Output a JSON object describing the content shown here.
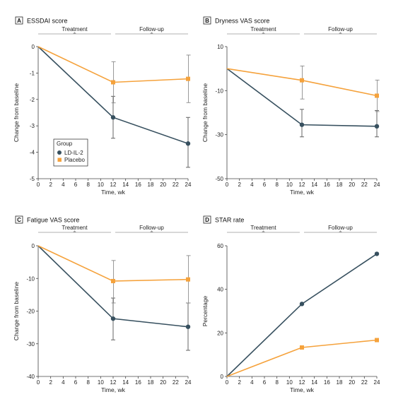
{
  "colors": {
    "ld_il2": "#37505f",
    "placebo": "#f5a23c",
    "axis": "#444444",
    "errorbar": "#8a8a8a",
    "phase_bar": "#999999"
  },
  "chart_data": [
    {
      "type": "line",
      "panel_letter": "A",
      "title": "ESSDAI score",
      "xlabel": "Time, wk",
      "ylabel": "Change from baseline",
      "xlim": [
        0,
        24
      ],
      "xticks": [
        0,
        2,
        4,
        6,
        8,
        10,
        12,
        14,
        16,
        18,
        20,
        22,
        24
      ],
      "ylim": [
        -5,
        0
      ],
      "yticks": [
        0,
        -1,
        -2,
        -3,
        -4,
        -5
      ],
      "phases": [
        "Treatment",
        "Follow-up"
      ],
      "legend": {
        "title": "Group",
        "entries": [
          "LD-IL-2",
          "Placebo"
        ],
        "placement": "bottom-left"
      },
      "x": [
        0,
        12,
        24
      ],
      "series": [
        {
          "name": "LD-IL-2",
          "key": "ld_il2",
          "marker": "circle",
          "values": [
            0,
            -2.68,
            -3.67
          ],
          "err_low": [
            null,
            -3.47,
            -4.57
          ],
          "err_high": [
            null,
            -1.88,
            -2.68
          ]
        },
        {
          "name": "Placebo",
          "key": "placebo",
          "marker": "square",
          "values": [
            0,
            -1.35,
            -1.22
          ],
          "err_low": [
            null,
            -2.13,
            -2.12
          ],
          "err_high": [
            null,
            -0.57,
            -0.32
          ]
        }
      ]
    },
    {
      "type": "line",
      "panel_letter": "B",
      "title": "Dryness VAS score",
      "xlabel": "Time, wk",
      "ylabel": "Change from baseline",
      "xlim": [
        0,
        24
      ],
      "xticks": [
        0,
        2,
        4,
        6,
        8,
        10,
        12,
        14,
        16,
        18,
        20,
        22,
        24
      ],
      "ylim": [
        -50,
        10
      ],
      "yticks": [
        10,
        -10,
        -30,
        -50
      ],
      "phases": [
        "Treatment",
        "Follow-up"
      ],
      "x": [
        0,
        12,
        24
      ],
      "series": [
        {
          "name": "LD-IL-2",
          "key": "ld_il2",
          "marker": "circle",
          "values": [
            0,
            -25.5,
            -26.2
          ],
          "err_low": [
            null,
            -31,
            -31
          ],
          "err_high": [
            null,
            -18.5,
            -19
          ]
        },
        {
          "name": "Placebo",
          "key": "placebo",
          "marker": "square",
          "values": [
            0,
            -5.3,
            -12.3
          ],
          "err_low": [
            null,
            -13.8,
            -19.5
          ],
          "err_high": [
            null,
            1.2,
            -5.2
          ]
        }
      ]
    },
    {
      "type": "line",
      "panel_letter": "C",
      "title": "Fatigue VAS score",
      "xlabel": "Time, wk",
      "ylabel": "Change from baseline",
      "xlim": [
        0,
        24
      ],
      "xticks": [
        0,
        2,
        4,
        6,
        8,
        10,
        12,
        14,
        16,
        18,
        20,
        22,
        24
      ],
      "ylim": [
        -40,
        0
      ],
      "yticks": [
        0,
        -10,
        -20,
        -30,
        -40
      ],
      "phases": [
        "Treatment",
        "Follow-up"
      ],
      "x": [
        0,
        12,
        24
      ],
      "series": [
        {
          "name": "LD-IL-2",
          "key": "ld_il2",
          "marker": "circle",
          "values": [
            0,
            -22.3,
            -24.8
          ],
          "err_low": [
            null,
            -28.8,
            -32
          ],
          "err_high": [
            null,
            -16,
            -17.5
          ]
        },
        {
          "name": "Placebo",
          "key": "placebo",
          "marker": "square",
          "values": [
            0,
            -10.8,
            -10.3
          ],
          "err_low": [
            null,
            -17.5,
            -17.5
          ],
          "err_high": [
            null,
            -4.5,
            -3
          ]
        }
      ]
    },
    {
      "type": "line",
      "panel_letter": "D",
      "title": "STAR rate",
      "xlabel": "Time, wk",
      "ylabel": "Percentage",
      "xlim": [
        0,
        24
      ],
      "xticks": [
        0,
        2,
        4,
        6,
        8,
        10,
        12,
        14,
        16,
        18,
        20,
        22,
        24
      ],
      "ylim": [
        0,
        60
      ],
      "yticks": [
        0,
        20,
        40,
        60
      ],
      "phases": [
        "Treatment",
        "Follow-up"
      ],
      "x": [
        0,
        12,
        24
      ],
      "series": [
        {
          "name": "LD-IL-2",
          "key": "ld_il2",
          "marker": "circle",
          "values": [
            0,
            33.3,
            56.3
          ]
        },
        {
          "name": "Placebo",
          "key": "placebo",
          "marker": "square",
          "values": [
            0,
            13.3,
            16.7
          ]
        }
      ]
    }
  ]
}
